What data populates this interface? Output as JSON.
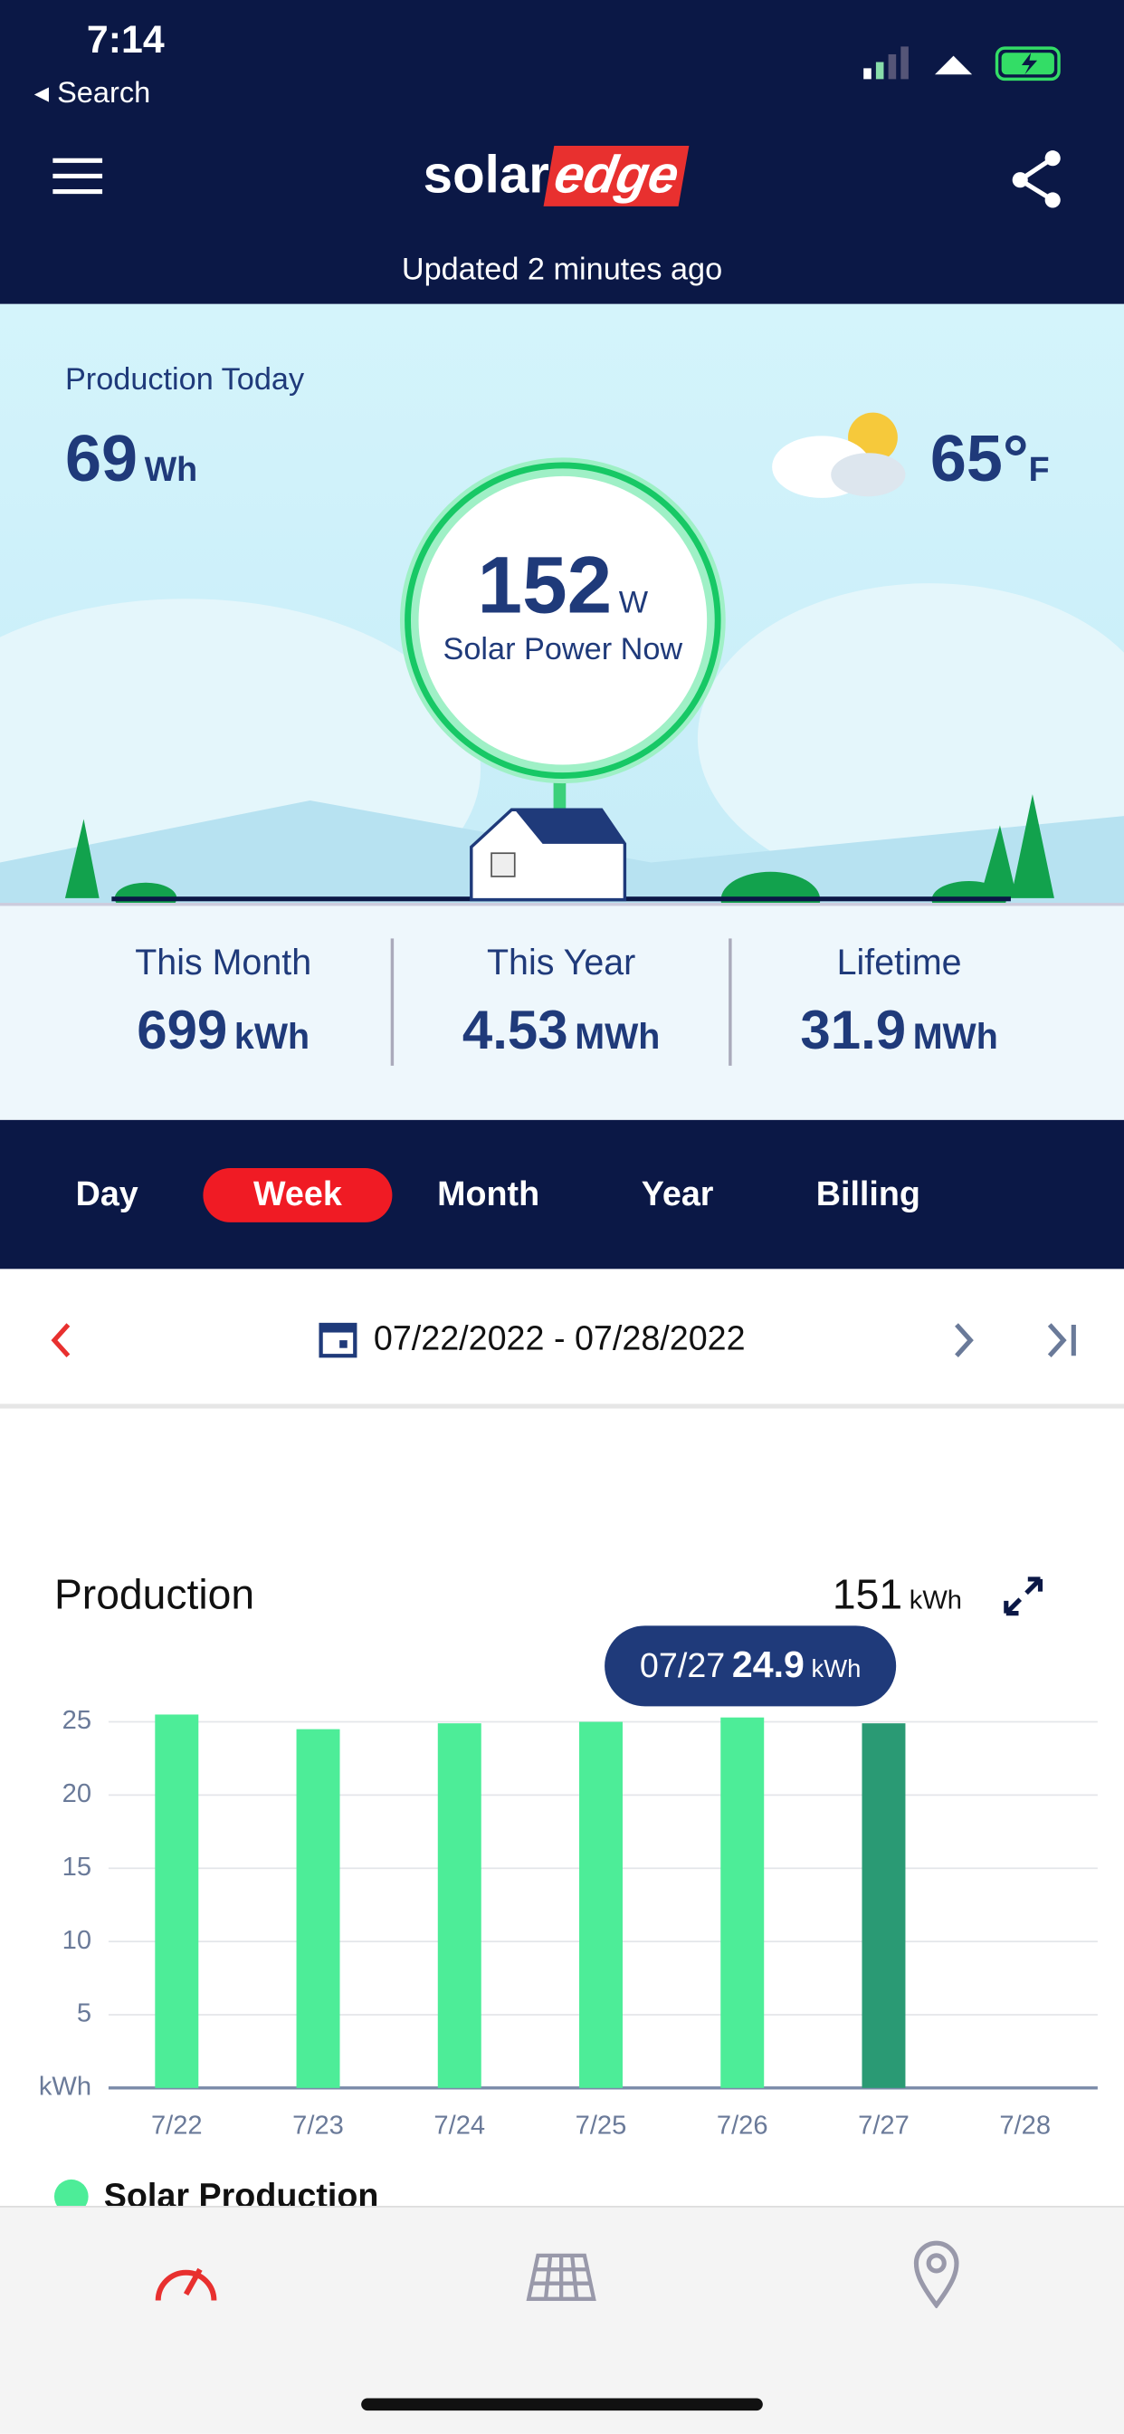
{
  "status_bar": {
    "time": "7:14",
    "back": "Search"
  },
  "header": {
    "logo_a": "solar",
    "logo_b": "edge",
    "updated": "Updated 2 minutes ago"
  },
  "hero": {
    "production_label": "Production Today",
    "production_value": "69",
    "production_unit": "Wh",
    "temp_value": "65°",
    "temp_unit": "F",
    "power_value": "152",
    "power_unit": "W",
    "power_label": "Solar Power Now"
  },
  "stats": [
    {
      "label": "This Month",
      "value": "699",
      "unit": "kWh"
    },
    {
      "label": "This Year",
      "value": "4.53",
      "unit": "MWh"
    },
    {
      "label": "Lifetime",
      "value": "31.9",
      "unit": "MWh"
    }
  ],
  "tabs": [
    "Day",
    "Week",
    "Month",
    "Year",
    "Billing"
  ],
  "date_range": "07/22/2022 - 07/28/2022",
  "chart": {
    "type": "bar",
    "title": "Production",
    "total": "151",
    "total_unit": "kWh",
    "tooltip": {
      "date": "07/27",
      "unit": "kWh"
    },
    "categories": [
      "7/22",
      "7/23",
      "7/24",
      "7/25",
      "7/26",
      "7/27",
      "7/28"
    ],
    "values": [
      25.5,
      24.5,
      24.9,
      25.0,
      25.3,
      24.9,
      0
    ],
    "colors": [
      "#4ded98",
      "#4ded98",
      "#4ded98",
      "#4ded98",
      "#4ded98",
      "#2a9a74",
      "#4ded98"
    ],
    "ylim": [
      0,
      27
    ],
    "yticks": [
      {
        "value": 0,
        "label": "kWh"
      },
      5,
      10,
      15,
      20,
      25
    ],
    "grid": true,
    "legend": "Solar Production"
  }
}
